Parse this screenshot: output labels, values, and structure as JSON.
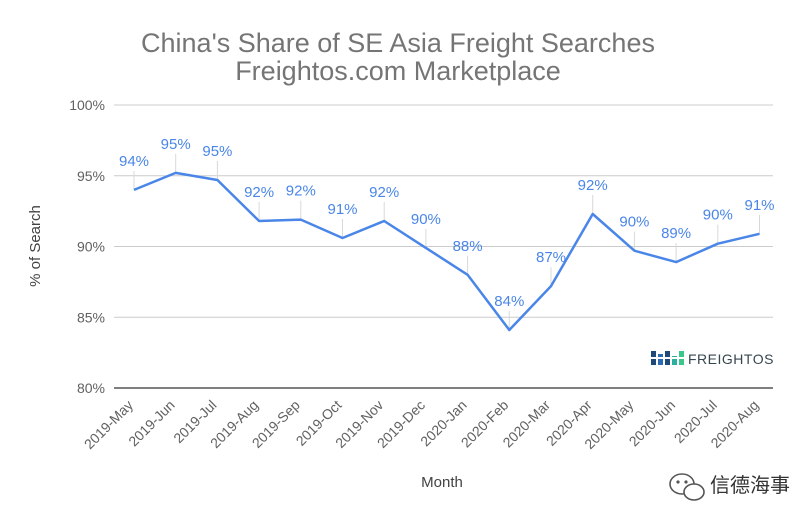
{
  "chart_data": {
    "type": "line",
    "title": "China's Share of SE Asia Freight Searches",
    "subtitle": "Freightos.com Marketplace",
    "xlabel": "Month",
    "ylabel": "% of Search",
    "categories": [
      "2019-May",
      "2019-Jun",
      "2019-Jul",
      "2019-Aug",
      "2019-Sep",
      "2019-Oct",
      "2019-Nov",
      "2019-Dec",
      "2020-Jan",
      "2020-Feb",
      "2020-Mar",
      "2020-Apr",
      "2020-May",
      "2020-Jun",
      "2020-Jul",
      "2020-Aug"
    ],
    "series": [
      {
        "values": [
          94.0,
          95.2,
          94.7,
          91.8,
          91.9,
          90.6,
          91.8,
          89.9,
          88.0,
          84.1,
          87.2,
          92.3,
          89.7,
          88.9,
          90.2,
          90.9
        ],
        "labels": [
          "94%",
          "95%",
          "95%",
          "92%",
          "92%",
          "91%",
          "92%",
          "90%",
          "88%",
          "84%",
          "87%",
          "92%",
          "90%",
          "89%",
          "90%",
          "91%"
        ],
        "color": "#4a86e8"
      }
    ],
    "ylim": [
      80,
      100
    ],
    "yticks": [
      80,
      85,
      90,
      95,
      100
    ],
    "ytick_labels": [
      "80%",
      "85%",
      "90%",
      "95%",
      "100%"
    ],
    "grid": true,
    "gridline_color": "#cccccc"
  },
  "logo": {
    "text": "FREIGHTOS"
  },
  "watermark": {
    "text": "信德海事",
    "icon": "wechat-icon"
  }
}
